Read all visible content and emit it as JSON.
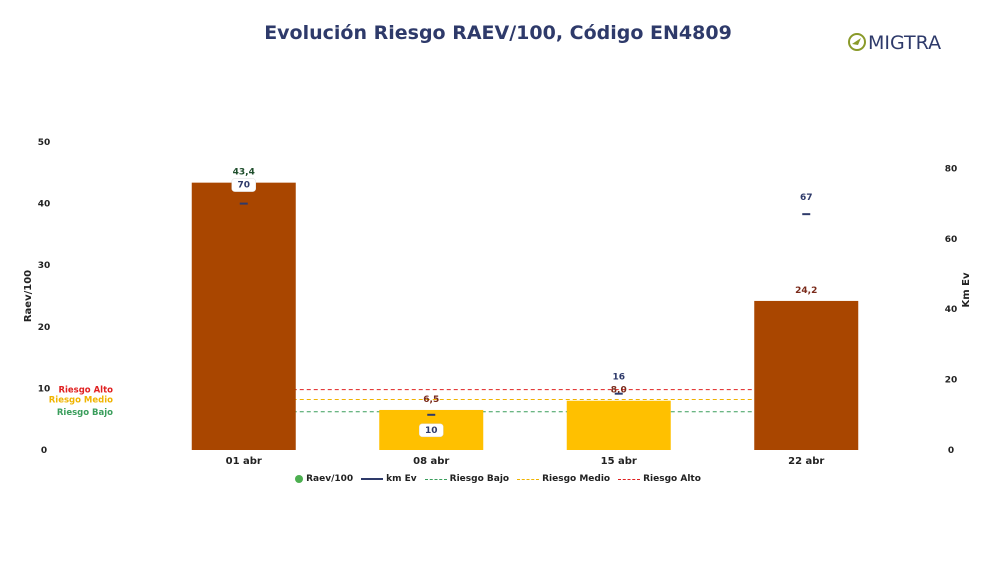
{
  "logo_text": "MIGTRA",
  "colors": {
    "title": "#2e3a6a",
    "bar_high": "#a94600",
    "bar_medium": "#ffc000",
    "km_line": "#2e3a6a",
    "bajo": "#3a9e5c",
    "medio": "#f0b400",
    "alto": "#e02020",
    "legend_raev": "#4caf50"
  },
  "chart_data": {
    "type": "bar",
    "title": "Evolución Riesgo RAEV/100, Código EN4809",
    "ylabel": "Raev/100",
    "y2label": "Km Ev",
    "ylim": [
      0,
      50
    ],
    "y2lim": [
      0,
      87.5
    ],
    "yticks": [
      0,
      10,
      20,
      30,
      40,
      50
    ],
    "y2ticks": [
      0,
      20,
      40,
      60,
      80
    ],
    "categories": [
      "01 abr",
      "08 abr",
      "15 abr",
      "22 abr"
    ],
    "series": [
      {
        "name": "Raev/100",
        "kind": "bar",
        "values": [
          43.4,
          6.5,
          8.0,
          24.2
        ],
        "labels": [
          "43,4",
          "6,5",
          "8,0",
          "24,2"
        ],
        "levels": [
          "high",
          "medium",
          "medium",
          "high"
        ]
      },
      {
        "name": "km Ev",
        "kind": "marker",
        "axis": "right",
        "values": [
          70,
          10,
          16,
          67
        ],
        "labels": [
          "70",
          "10",
          "16",
          "67"
        ],
        "boxed": [
          true,
          true,
          false,
          false
        ]
      }
    ],
    "thresholds": [
      {
        "name": "Riesgo Bajo",
        "value": 6.2,
        "color_key": "bajo",
        "label": "Riesgo Bajo"
      },
      {
        "name": "Riesgo Medio",
        "value": 8.2,
        "color_key": "medio",
        "label": "Riesgo Medio"
      },
      {
        "name": "Riesgo Alto",
        "value": 9.8,
        "color_key": "alto",
        "label": "Riesgo Alto"
      }
    ],
    "legend": [
      {
        "label": "Raev/100",
        "shape": "dot",
        "color_key": "legend_raev"
      },
      {
        "label": "km Ev",
        "shape": "line",
        "color_key": "km_line"
      },
      {
        "label": "Riesgo Bajo",
        "shape": "dash",
        "color_key": "bajo"
      },
      {
        "label": "Riesgo Medio",
        "shape": "dash",
        "color_key": "medio"
      },
      {
        "label": "Riesgo Alto",
        "shape": "dash",
        "color_key": "alto"
      }
    ],
    "legend_position": "bottom",
    "grid": false
  }
}
